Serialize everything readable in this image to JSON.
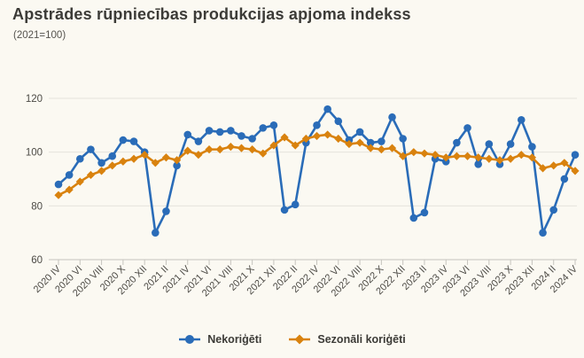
{
  "header": {
    "title": "Apstrādes rūpniecības produkcijas apjoma indekss",
    "subtitle": "(2021=100)"
  },
  "legend": {
    "items": [
      {
        "label": "Nekoriģēti",
        "marker": "circle",
        "color": "#2a6cb8"
      },
      {
        "label": "Sezonāli koriģēti",
        "marker": "diamond",
        "color": "#d9820e"
      }
    ]
  },
  "colors": {
    "background": "#fbf9f2",
    "gridline": "#e5e3dc",
    "axis": "#c6c4be",
    "tick_label": "#4c4a45",
    "title_text": "#3c3b37",
    "series_blue": "#2a6cb8",
    "series_orange": "#d9820e"
  },
  "chart_data": {
    "type": "line",
    "title": "Apstrādes rūpniecības produkcijas apjoma indekss",
    "subtitle": "(2021=100)",
    "ylim": [
      60,
      120
    ],
    "yticks": [
      60,
      80,
      100,
      120
    ],
    "grid": true,
    "legend_position": "bottom",
    "x_label_every": 2,
    "x": [
      "2020 IV",
      "2020 V",
      "2020 VI",
      "2020 VII",
      "2020 VIII",
      "2020 IX",
      "2020 X",
      "2020 XI",
      "2020 XII",
      "2021 I",
      "2021 II",
      "2021 III",
      "2021 IV",
      "2021 V",
      "2021 VI",
      "2021 VII",
      "2021 VIII",
      "2021 IX",
      "2021 X",
      "2021 XI",
      "2021 XII",
      "2022 I",
      "2022 II",
      "2022 III",
      "2022 IV",
      "2022 V",
      "2022 VI",
      "2022 VII",
      "2022 VIII",
      "2022 IX",
      "2022 X",
      "2022 XI",
      "2022 XII",
      "2023 I",
      "2023 II",
      "2023 III",
      "2023 IV",
      "2023 V",
      "2023 VI",
      "2023 VII",
      "2023 VIII",
      "2023 IX",
      "2023 X",
      "2023 XI",
      "2023 XII",
      "2024 I",
      "2024 II",
      "2024 III",
      "2024 IV"
    ],
    "series": [
      {
        "name": "Nekoriģēti",
        "color": "#2a6cb8",
        "marker": "circle",
        "values": [
          88,
          91.5,
          97.5,
          101,
          96,
          98.5,
          104.5,
          104,
          100,
          70,
          78,
          95,
          106.5,
          104,
          108,
          107.5,
          108,
          106,
          105,
          109,
          110,
          78.5,
          80.5,
          103.5,
          110,
          116,
          111.5,
          104.5,
          107.5,
          103.5,
          104,
          113,
          105,
          75.5,
          77.5,
          97.5,
          96.5,
          103.5,
          109,
          95.5,
          103,
          95.5,
          103,
          112,
          102,
          70,
          78.5,
          90,
          99
        ]
      },
      {
        "name": "Sezonāli koriģēti",
        "color": "#d9820e",
        "marker": "diamond",
        "values": [
          84,
          86,
          89,
          91.5,
          93,
          95,
          96.5,
          97.5,
          99,
          96,
          98,
          97,
          100.5,
          99,
          101,
          101,
          102,
          101.5,
          101,
          99.5,
          102.5,
          105.5,
          102.5,
          105,
          106,
          106.5,
          105,
          103,
          103.5,
          101.5,
          101,
          101.5,
          98.5,
          100,
          99.5,
          99,
          98,
          98.5,
          98.5,
          98,
          97.5,
          97,
          97.5,
          99,
          98,
          94,
          95,
          96,
          93
        ]
      }
    ]
  }
}
